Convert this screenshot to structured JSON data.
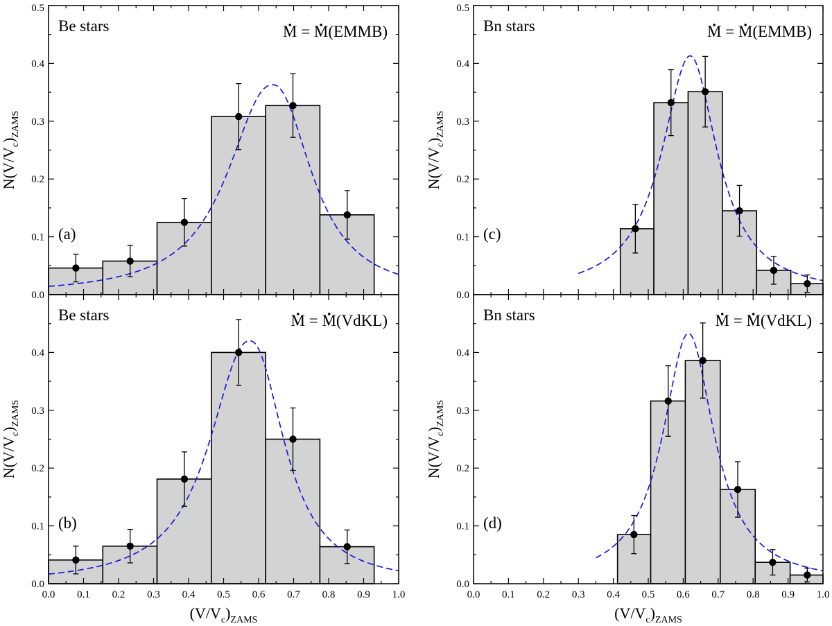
{
  "figure": {
    "xlabel": {
      "main": "(V/V",
      "sub1": "c",
      "close": ")",
      "sub2": "ZAMS"
    },
    "ylabel": {
      "main": "N(V/V",
      "sub1": "c",
      "close": ")",
      "sub2": "ZAMS"
    },
    "x_ticks": [
      "0.0",
      "0.1",
      "0.2",
      "0.3",
      "0.4",
      "0.5",
      "0.6",
      "0.7",
      "0.8",
      "0.9",
      "1.0"
    ],
    "y_ticks": [
      "0.0",
      "0.1",
      "0.2",
      "0.3",
      "0.4",
      "0.5"
    ],
    "colors": {
      "bar_fill": "#d3d3d3",
      "bar_stroke": "#000000",
      "fit_line": "#1a1adc",
      "point": "#000000"
    }
  },
  "chart_data": [
    {
      "id": "a",
      "type": "bar",
      "panel_label": "(a)",
      "sample": "Be stars",
      "mdot": {
        "m": "M",
        "eq": " = ",
        "m2": "M",
        "model": "(EMMB)"
      },
      "xlim": [
        0,
        1
      ],
      "ylim": [
        0,
        0.5
      ],
      "bins": [
        [
          0.0,
          0.155
        ],
        [
          0.155,
          0.31
        ],
        [
          0.31,
          0.465
        ],
        [
          0.465,
          0.62
        ],
        [
          0.62,
          0.775
        ],
        [
          0.775,
          0.93
        ]
      ],
      "values": [
        0.046,
        0.058,
        0.125,
        0.308,
        0.327,
        0.138
      ],
      "points": [
        {
          "x": 0.078,
          "y": 0.046,
          "err": 0.024
        },
        {
          "x": 0.233,
          "y": 0.058,
          "err": 0.027
        },
        {
          "x": 0.388,
          "y": 0.125,
          "err": 0.041
        },
        {
          "x": 0.543,
          "y": 0.308,
          "err": 0.057
        },
        {
          "x": 0.698,
          "y": 0.327,
          "err": 0.055
        },
        {
          "x": 0.853,
          "y": 0.138,
          "err": 0.042
        }
      ],
      "fit": {
        "x0": 0.64,
        "amp": 0.363,
        "gl": 0.15,
        "gr": 0.13,
        "p": 2.2,
        "xmin": 0.0,
        "xmax": 1.0
      }
    },
    {
      "id": "c",
      "type": "bar",
      "panel_label": "(c)",
      "sample": "Bn stars",
      "mdot": {
        "m": "M",
        "eq": " = ",
        "m2": "M",
        "model": "(EMMB)"
      },
      "xlim": [
        0,
        1
      ],
      "ylim": [
        0,
        0.5
      ],
      "bins": [
        [
          0.42,
          0.516
        ],
        [
          0.516,
          0.614
        ],
        [
          0.614,
          0.712
        ],
        [
          0.712,
          0.81
        ],
        [
          0.81,
          0.908
        ],
        [
          0.908,
          1.0
        ]
      ],
      "values": [
        0.114,
        0.332,
        0.351,
        0.145,
        0.042,
        0.019
      ],
      "points": [
        {
          "x": 0.463,
          "y": 0.114,
          "err": 0.042
        },
        {
          "x": 0.565,
          "y": 0.332,
          "err": 0.057
        },
        {
          "x": 0.663,
          "y": 0.351,
          "err": 0.061
        },
        {
          "x": 0.761,
          "y": 0.145,
          "err": 0.044
        },
        {
          "x": 0.859,
          "y": 0.042,
          "err": 0.024
        },
        {
          "x": 0.955,
          "y": 0.019,
          "err": 0.015
        }
      ],
      "fit": {
        "x0": 0.62,
        "amp": 0.413,
        "gl": 0.1,
        "gr": 0.095,
        "p": 2.0,
        "xmin": 0.3,
        "xmax": 1.0
      }
    },
    {
      "id": "b",
      "type": "bar",
      "panel_label": "(b)",
      "sample": "Be stars",
      "mdot": {
        "m": "M",
        "eq": " = ",
        "m2": "M",
        "model": "(VdKL)"
      },
      "xlim": [
        0,
        1
      ],
      "ylim": [
        0,
        0.5
      ],
      "bins": [
        [
          0.0,
          0.155
        ],
        [
          0.155,
          0.31
        ],
        [
          0.31,
          0.465
        ],
        [
          0.465,
          0.62
        ],
        [
          0.62,
          0.775
        ],
        [
          0.775,
          0.93
        ]
      ],
      "values": [
        0.041,
        0.065,
        0.181,
        0.4,
        0.25,
        0.064
      ],
      "points": [
        {
          "x": 0.078,
          "y": 0.041,
          "err": 0.024
        },
        {
          "x": 0.233,
          "y": 0.065,
          "err": 0.029
        },
        {
          "x": 0.388,
          "y": 0.181,
          "err": 0.047
        },
        {
          "x": 0.543,
          "y": 0.4,
          "err": 0.057
        },
        {
          "x": 0.698,
          "y": 0.25,
          "err": 0.054
        },
        {
          "x": 0.853,
          "y": 0.064,
          "err": 0.029
        }
      ],
      "fit": {
        "x0": 0.575,
        "amp": 0.42,
        "gl": 0.135,
        "gr": 0.115,
        "p": 2.2,
        "xmin": 0.0,
        "xmax": 1.0
      }
    },
    {
      "id": "d",
      "type": "bar",
      "panel_label": "(d)",
      "sample": "Bn stars",
      "mdot": {
        "m": "M",
        "eq": " = ",
        "m2": "M",
        "model": "(VdKL)"
      },
      "xlim": [
        0,
        1
      ],
      "ylim": [
        0,
        0.5
      ],
      "bins": [
        [
          0.412,
          0.507
        ],
        [
          0.507,
          0.606
        ],
        [
          0.606,
          0.706
        ],
        [
          0.706,
          0.806
        ],
        [
          0.806,
          0.906
        ],
        [
          0.906,
          1.0
        ]
      ],
      "values": [
        0.085,
        0.316,
        0.386,
        0.163,
        0.037,
        0.015
      ],
      "points": [
        {
          "x": 0.459,
          "y": 0.085,
          "err": 0.033
        },
        {
          "x": 0.557,
          "y": 0.316,
          "err": 0.061
        },
        {
          "x": 0.656,
          "y": 0.386,
          "err": 0.065
        },
        {
          "x": 0.756,
          "y": 0.163,
          "err": 0.048
        },
        {
          "x": 0.856,
          "y": 0.037,
          "err": 0.022
        },
        {
          "x": 0.955,
          "y": 0.015,
          "err": 0.012
        }
      ],
      "fit": {
        "x0": 0.615,
        "amp": 0.433,
        "gl": 0.09,
        "gr": 0.09,
        "p": 2.0,
        "xmin": 0.35,
        "xmax": 1.0
      }
    }
  ]
}
